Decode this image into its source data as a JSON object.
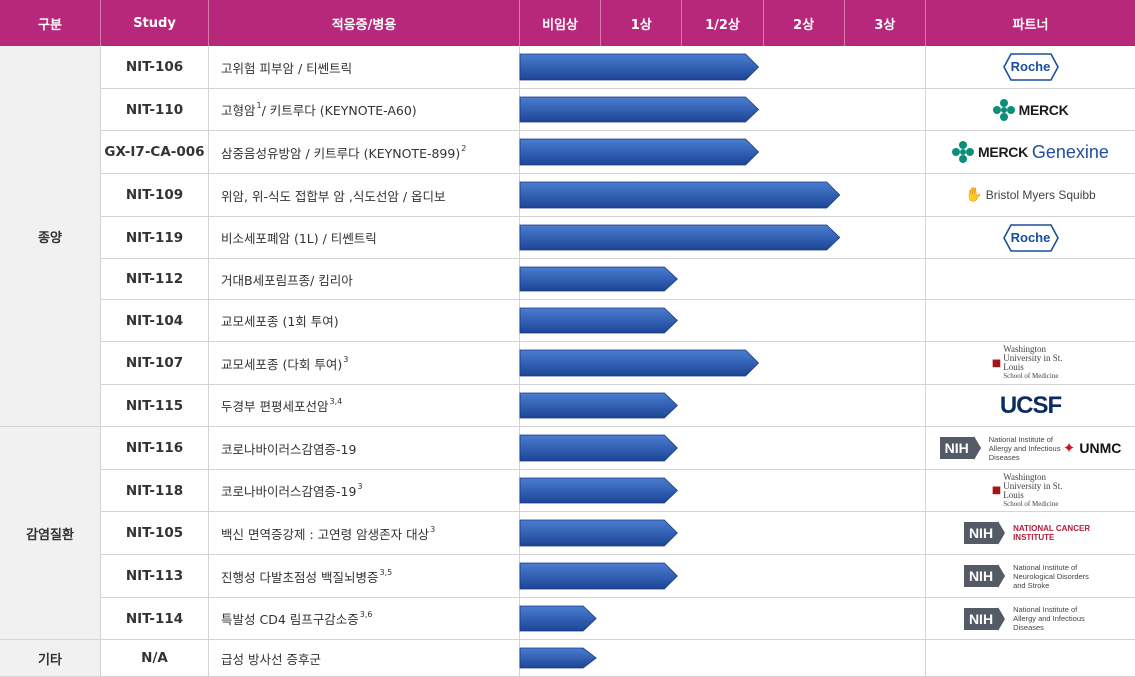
{
  "header": {
    "category": "구분",
    "study": "Study",
    "indication": "적응증/병용",
    "phases": [
      "비임상",
      "1상",
      "1/2상",
      "2상",
      "3상"
    ],
    "partner": "파트너"
  },
  "categories": [
    {
      "label": "종양",
      "rows": 9
    },
    {
      "label": "감염질환",
      "rows": 5
    },
    {
      "label": "기타",
      "rows": 1
    }
  ],
  "rows": [
    {
      "study": "NIT-106",
      "indication": "고위험 피부암 / 티쎈트릭",
      "sup": "",
      "progress_phase": 2.95,
      "partner": "roche",
      "partner_text": "Roche",
      "partner_sub": ""
    },
    {
      "study": "NIT-110",
      "indication": "고형암",
      "sup": "1",
      "indication_tail": " / 키트루다 (KEYNOTE-A60)",
      "progress_phase": 2.95,
      "partner": "merck",
      "partner_text": "MERCK",
      "partner_sub": ""
    },
    {
      "study": "GX-I7-CA-006",
      "indication": "삼중음성유방암 / 키트루다 (KEYNOTE-899)",
      "sup": "2",
      "progress_phase": 2.95,
      "partner": "merck-genexine",
      "partner_text": "MERCK",
      "partner_sub": "Genexine"
    },
    {
      "study": "NIT-109",
      "indication": "위암, 위-식도 접합부 암 ,식도선암 / 옵디보",
      "sup": "",
      "progress_phase": 3.95,
      "partner": "bms",
      "partner_text": "Bristol Myers Squibb",
      "partner_sub": ""
    },
    {
      "study": "NIT-119",
      "indication": "비소세포폐암 (1L) / 티쎈트릭",
      "sup": "",
      "progress_phase": 3.95,
      "partner": "roche",
      "partner_text": "Roche",
      "partner_sub": ""
    },
    {
      "study": "NIT-112",
      "indication": "거대B세포림프종/ 킴리아",
      "sup": "",
      "progress_phase": 1.95,
      "partner": "none",
      "partner_text": "",
      "partner_sub": ""
    },
    {
      "study": "NIT-104",
      "indication": "교모세포종 (1회 투여)",
      "sup": "",
      "progress_phase": 1.95,
      "partner": "none",
      "partner_text": "",
      "partner_sub": ""
    },
    {
      "study": "NIT-107",
      "indication": "교모세포종 (다회 투여)",
      "sup": "3",
      "progress_phase": 2.95,
      "partner": "washu",
      "partner_text": "Washington University in St. Louis",
      "partner_sub": "School of Medicine"
    },
    {
      "study": "NIT-115",
      "indication": "두경부 편평세포선암",
      "sup": "3,4",
      "progress_phase": 1.95,
      "partner": "ucsf",
      "partner_text": "UCSF",
      "partner_sub": ""
    },
    {
      "study": "NIT-116",
      "indication": "코로나바이러스감염증-19",
      "sup": "",
      "progress_phase": 1.95,
      "partner": "nih-unmc",
      "partner_text": "NIH",
      "partner_sub": "National Institute of Allergy and Infectious Diseases",
      "partner_extra": "UNMC"
    },
    {
      "study": "NIT-118",
      "indication": "코로나바이러스감염증-19",
      "sup": "3",
      "progress_phase": 1.95,
      "partner": "washu",
      "partner_text": "Washington University in St. Louis",
      "partner_sub": "School of Medicine"
    },
    {
      "study": "NIT-105",
      "indication": "백신 면역증강제 : 고연령 암생존자 대상",
      "sup": "3",
      "progress_phase": 1.95,
      "partner": "nih-nci",
      "partner_text": "NIH",
      "partner_sub": "NATIONAL CANCER INSTITUTE"
    },
    {
      "study": "NIT-113",
      "indication": "진행성 다발초점성 백질뇌병증",
      "sup": "3,5",
      "progress_phase": 1.95,
      "partner": "nih-ninds",
      "partner_text": "NIH",
      "partner_sub": "National Institute of Neurological Disorders and Stroke"
    },
    {
      "study": "NIT-114",
      "indication": "특발성 CD4 림프구감소증",
      "sup": "3,6",
      "progress_phase": 0.95,
      "partner": "nih-niaid",
      "partner_text": "NIH",
      "partner_sub": "National Institute of Allergy and Infectious Diseases"
    },
    {
      "study": "N/A",
      "indication": "급성 방사선 증후군",
      "sup": "",
      "progress_phase": 0.95,
      "partner": "none",
      "partner_text": "",
      "partner_sub": ""
    }
  ],
  "colors": {
    "header_bg": "#b8287a",
    "bar_fill_top": "#4a7dd0",
    "bar_fill_bottom": "#1d4596",
    "category_bg": "#f1f1f1"
  }
}
